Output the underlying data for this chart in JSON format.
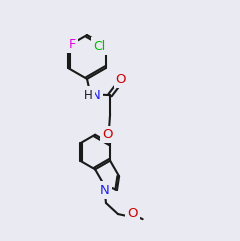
{
  "bg_color": "#eaeaf2",
  "line_color": "#1a1a1a",
  "bond_lw": 1.5,
  "atom_colors": {
    "N": "#2020ee",
    "O": "#cc0000",
    "Cl": "#00bb00",
    "F": "#dd00dd"
  },
  "font_size": 9.0,
  "font_size_small": 8.0
}
